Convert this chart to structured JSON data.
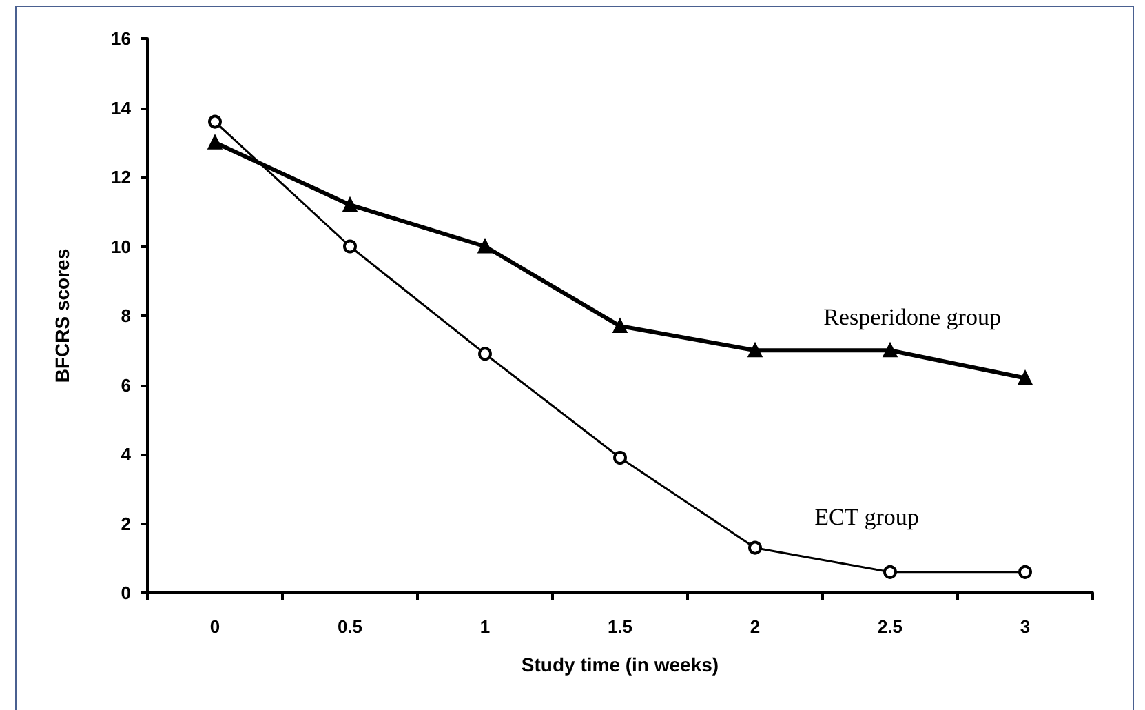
{
  "chart_data": {
    "type": "line",
    "xlabel": "Study time (in weeks)",
    "ylabel": "BFCRS scores",
    "categories": [
      "0",
      "0.5",
      "1",
      "1.5",
      "2",
      "2.5",
      "3"
    ],
    "series": [
      {
        "name": "Resperidone group",
        "color": "#000000",
        "marker": "triangle",
        "values": [
          13,
          11.2,
          10,
          7.7,
          7,
          7,
          6.2
        ]
      },
      {
        "name": "ECT group",
        "color": "#000000",
        "marker": "circle",
        "values": [
          13.6,
          10,
          6.9,
          3.9,
          1.3,
          0.6,
          0.6
        ]
      }
    ],
    "ylim": [
      0,
      16
    ],
    "yticks": [
      0,
      2,
      4,
      6,
      8,
      10,
      12,
      14,
      16
    ],
    "grid": false,
    "legend": false
  }
}
